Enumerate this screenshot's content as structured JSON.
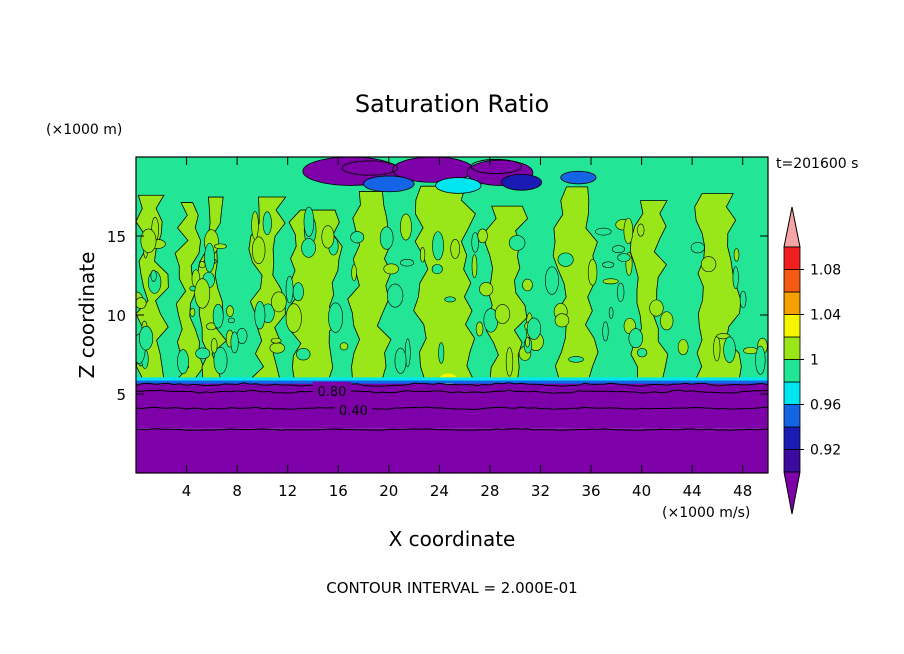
{
  "chart_data": {
    "type": "heatmap",
    "title": "Saturation Ratio",
    "xlabel": "X coordinate",
    "ylabel": "Z coordinate",
    "x_unit": "(×1000 m/s)",
    "y_unit": "(×1000 m)",
    "time_label": "t=201600 s",
    "footer": "CONTOUR INTERVAL = 2.000E-01",
    "xlim": [
      0,
      50
    ],
    "ylim": [
      0,
      20
    ],
    "xticks": [
      4,
      8,
      12,
      16,
      20,
      24,
      28,
      32,
      36,
      40,
      44,
      48
    ],
    "yticks": [
      5,
      10,
      15
    ],
    "contour_labels": [
      {
        "text": "0.80",
        "x": 15.5,
        "y": 5.2
      },
      {
        "text": "0.40",
        "x": 17.2,
        "y": 4.0
      }
    ],
    "colorbar": {
      "levels": [
        0.9,
        0.92,
        0.94,
        0.96,
        0.98,
        1.0,
        1.02,
        1.04,
        1.06,
        1.08,
        1.1
      ],
      "labels": [
        "0.92",
        "0.96",
        "1",
        "1.04",
        "1.08"
      ],
      "colors": [
        "#3b0a9e",
        "#1a1ab4",
        "#1464e6",
        "#00e6f0",
        "#22e696",
        "#99e619",
        "#f5f500",
        "#f5a000",
        "#f55a14",
        "#f01e1e"
      ],
      "under_color": "#7d00a8",
      "over_color": "#f5a5a5"
    },
    "bands": [
      {
        "range": [
          0,
          2.8
        ],
        "value": "< 0.90"
      },
      {
        "range": [
          2.8,
          5.9
        ],
        "value": "< 0.90"
      },
      {
        "range": [
          5.9,
          18.2
        ],
        "value": "0.98–1.02"
      },
      {
        "range": [
          18.2,
          20
        ],
        "value": "0.90–1.00"
      }
    ]
  }
}
